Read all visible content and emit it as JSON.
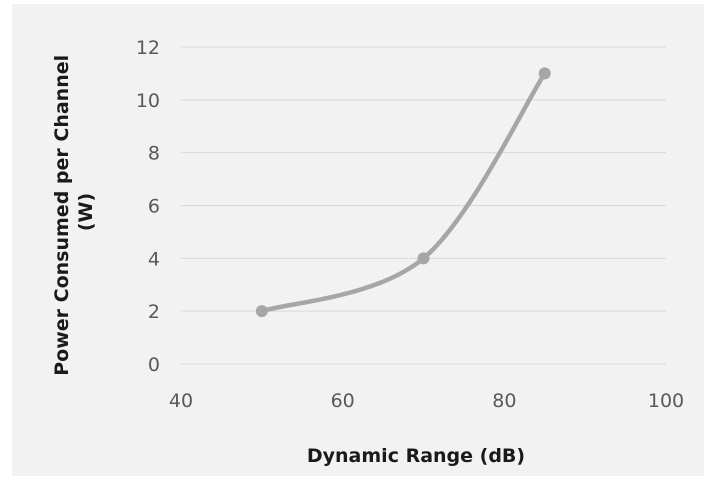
{
  "chart_data": {
    "type": "line",
    "title": "",
    "xlabel": "Dynamic Range (dB)",
    "ylabel_lines": [
      "Power Consumed per Channel",
      "(W)"
    ],
    "xlim": [
      40,
      100
    ],
    "ylim": [
      0,
      12
    ],
    "x_ticks": [
      40,
      60,
      80,
      100
    ],
    "y_ticks": [
      0,
      2,
      4,
      6,
      8,
      10,
      12
    ],
    "grid": "horizontal",
    "legend": "none",
    "smooth": true,
    "series": [
      {
        "color": "#a6a6a6",
        "x": [
          50,
          70,
          85
        ],
        "y": [
          2,
          4,
          11
        ]
      }
    ]
  }
}
